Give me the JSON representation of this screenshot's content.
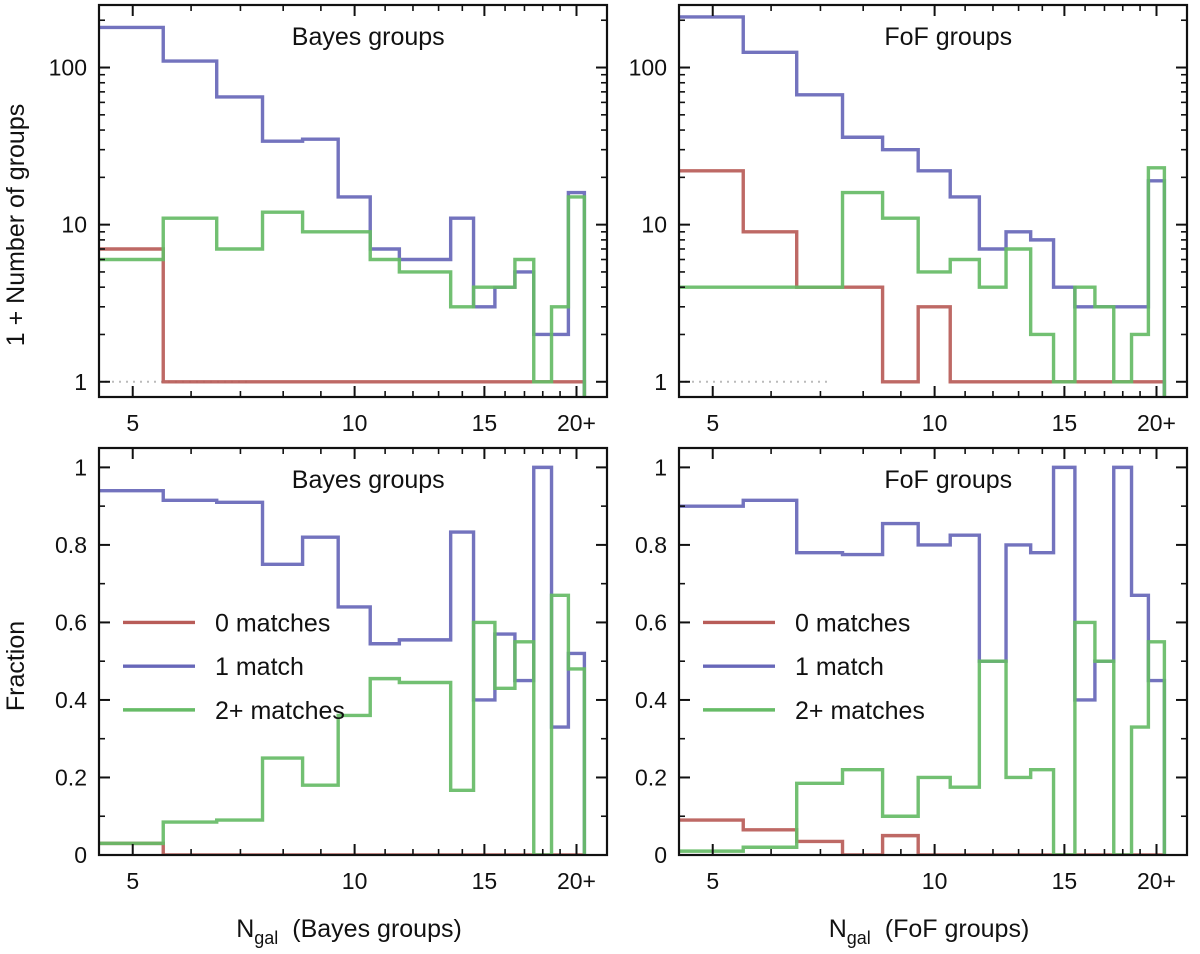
{
  "figure": {
    "ylabel_counts": "1 + Number of groups",
    "ylabel_fraction": "Fraction"
  },
  "chart_data": [
    {
      "type": "line",
      "panel": "top-left",
      "title": "Bayes groups",
      "ylabel": "1 + Number of groups",
      "xlabel": "",
      "xscale": "log",
      "yscale": "log",
      "xlim": [
        4.5,
        22
      ],
      "ylim": [
        0.8,
        250
      ],
      "xticks": [
        5,
        10,
        15,
        20
      ],
      "xticklabels": [
        "5",
        "10",
        "15",
        "20+"
      ],
      "yticks": [
        1,
        10,
        100
      ],
      "yticklabels": [
        "1",
        "10",
        "100"
      ],
      "bin_edges": [
        4.5,
        5.5,
        6.5,
        7.5,
        8.5,
        9.5,
        10.5,
        11.5,
        12.5,
        13.5,
        14.5,
        15.5,
        16.5,
        17.5,
        18.5,
        19.5,
        20.5
      ],
      "reference_line": 1,
      "series": [
        {
          "name": "0 matches",
          "color": "#b85c58",
          "values": [
            7,
            1,
            1,
            1,
            1,
            1,
            1,
            1,
            1,
            1,
            1,
            1,
            1,
            1,
            1,
            1
          ]
        },
        {
          "name": "1 match",
          "color": "#6767b9",
          "values": [
            180,
            110,
            65,
            34,
            35,
            15,
            7,
            6,
            6,
            11,
            3,
            4,
            5,
            2,
            2,
            16
          ]
        },
        {
          "name": "2+ matches",
          "color": "#66bb66",
          "values": [
            6,
            11,
            7,
            12,
            9,
            9,
            6,
            5,
            5,
            3,
            4,
            4,
            6,
            1,
            3,
            15
          ]
        }
      ]
    },
    {
      "type": "line",
      "panel": "top-right",
      "title": "FoF groups",
      "ylabel": "",
      "xlabel": "",
      "xscale": "log",
      "yscale": "log",
      "xlim": [
        4.5,
        22
      ],
      "ylim": [
        0.8,
        250
      ],
      "xticks": [
        5,
        10,
        15,
        20
      ],
      "xticklabels": [
        "5",
        "10",
        "15",
        "20+"
      ],
      "yticks": [
        1,
        10,
        100
      ],
      "yticklabels": [
        "1",
        "10",
        "100"
      ],
      "bin_edges": [
        4.5,
        5.5,
        6.5,
        7.5,
        8.5,
        9.5,
        10.5,
        11.5,
        12.5,
        13.5,
        14.5,
        15.5,
        16.5,
        17.5,
        18.5,
        19.5,
        20.5
      ],
      "reference_line": 1,
      "series": [
        {
          "name": "0 matches",
          "color": "#b85c58",
          "values": [
            22,
            9,
            4,
            4,
            1,
            3,
            1,
            1,
            1,
            1,
            1,
            1,
            1,
            1,
            1,
            1
          ]
        },
        {
          "name": "1 match",
          "color": "#6767b9",
          "values": [
            210,
            125,
            67,
            36,
            30,
            22,
            15,
            7,
            9,
            8,
            4,
            3,
            3,
            3,
            3,
            19
          ]
        },
        {
          "name": "2+ matches",
          "color": "#66bb66",
          "values": [
            4,
            4,
            4,
            16,
            11,
            5,
            6,
            4,
            7,
            2,
            1,
            4,
            3,
            1,
            2,
            23
          ]
        }
      ]
    },
    {
      "type": "line",
      "panel": "bottom-left",
      "title": "Bayes groups",
      "ylabel": "Fraction",
      "xlabel": "N",
      "xlabel_sub": "gal",
      "xlabel_suffix": "(Bayes groups)",
      "xscale": "log",
      "yscale": "linear",
      "xlim": [
        4.5,
        22
      ],
      "ylim": [
        0,
        1.05
      ],
      "xticks": [
        5,
        10,
        15,
        20
      ],
      "xticklabels": [
        "5",
        "10",
        "15",
        "20+"
      ],
      "yticks": [
        0,
        0.2,
        0.4,
        0.6,
        0.8,
        1
      ],
      "yticklabels": [
        "0",
        "0.2",
        "0.4",
        "0.6",
        "0.8",
        "1"
      ],
      "bin_edges": [
        4.5,
        5.5,
        6.5,
        7.5,
        8.5,
        9.5,
        10.5,
        11.5,
        12.5,
        13.5,
        14.5,
        15.5,
        16.5,
        17.5,
        18.5,
        19.5,
        20.5
      ],
      "legend": {
        "loc": "center-left",
        "entries": [
          "0 matches",
          "1 match",
          "2+ matches"
        ]
      },
      "series": [
        {
          "name": "0 matches",
          "color": "#b85c58",
          "values": [
            0.03,
            0,
            0,
            0,
            0,
            0,
            0,
            0,
            0,
            0,
            0,
            0,
            0,
            0,
            0,
            0
          ]
        },
        {
          "name": "1 match",
          "color": "#6767b9",
          "values": [
            0.94,
            0.915,
            0.91,
            0.75,
            0.82,
            0.64,
            0.545,
            0.555,
            0.555,
            0.833,
            0.4,
            0.57,
            0.45,
            1.0,
            0.33,
            0.52
          ]
        },
        {
          "name": "2+ matches",
          "color": "#66bb66",
          "values": [
            0.03,
            0.085,
            0.09,
            0.25,
            0.18,
            0.36,
            0.455,
            0.445,
            0.445,
            0.167,
            0.6,
            0.43,
            0.55,
            0.0,
            0.67,
            0.48
          ]
        }
      ]
    },
    {
      "type": "line",
      "panel": "bottom-right",
      "title": "FoF groups",
      "ylabel": "",
      "xlabel": "N",
      "xlabel_sub": "gal",
      "xlabel_suffix": "(FoF groups)",
      "xscale": "log",
      "yscale": "linear",
      "xlim": [
        4.5,
        22
      ],
      "ylim": [
        0,
        1.05
      ],
      "xticks": [
        5,
        10,
        15,
        20
      ],
      "xticklabels": [
        "5",
        "10",
        "15",
        "20+"
      ],
      "yticks": [
        0,
        0.2,
        0.4,
        0.6,
        0.8,
        1
      ],
      "yticklabels": [
        "0",
        "0.2",
        "0.4",
        "0.6",
        "0.8",
        "1"
      ],
      "bin_edges": [
        4.5,
        5.5,
        6.5,
        7.5,
        8.5,
        9.5,
        10.5,
        11.5,
        12.5,
        13.5,
        14.5,
        15.5,
        16.5,
        17.5,
        18.5,
        19.5,
        20.5
      ],
      "legend": {
        "loc": "center-left",
        "entries": [
          "0 matches",
          "1 match",
          "2+ matches"
        ]
      },
      "series": [
        {
          "name": "0 matches",
          "color": "#b85c58",
          "values": [
            0.09,
            0.065,
            0.035,
            0,
            0.05,
            0,
            0,
            0,
            0,
            0,
            0,
            0,
            0,
            0,
            0,
            0
          ]
        },
        {
          "name": "1 match",
          "color": "#6767b9",
          "values": [
            0.9,
            0.915,
            0.78,
            0.775,
            0.855,
            0.8,
            0.825,
            0.5,
            0.8,
            0.78,
            1.0,
            0.4,
            0.5,
            1.0,
            0.67,
            0.45
          ]
        },
        {
          "name": "2+ matches",
          "color": "#66bb66",
          "values": [
            0.01,
            0.02,
            0.185,
            0.22,
            0.1,
            0.2,
            0.175,
            0.5,
            0.2,
            0.22,
            0.0,
            0.6,
            0.5,
            0.0,
            0.33,
            0.55
          ]
        }
      ]
    }
  ]
}
